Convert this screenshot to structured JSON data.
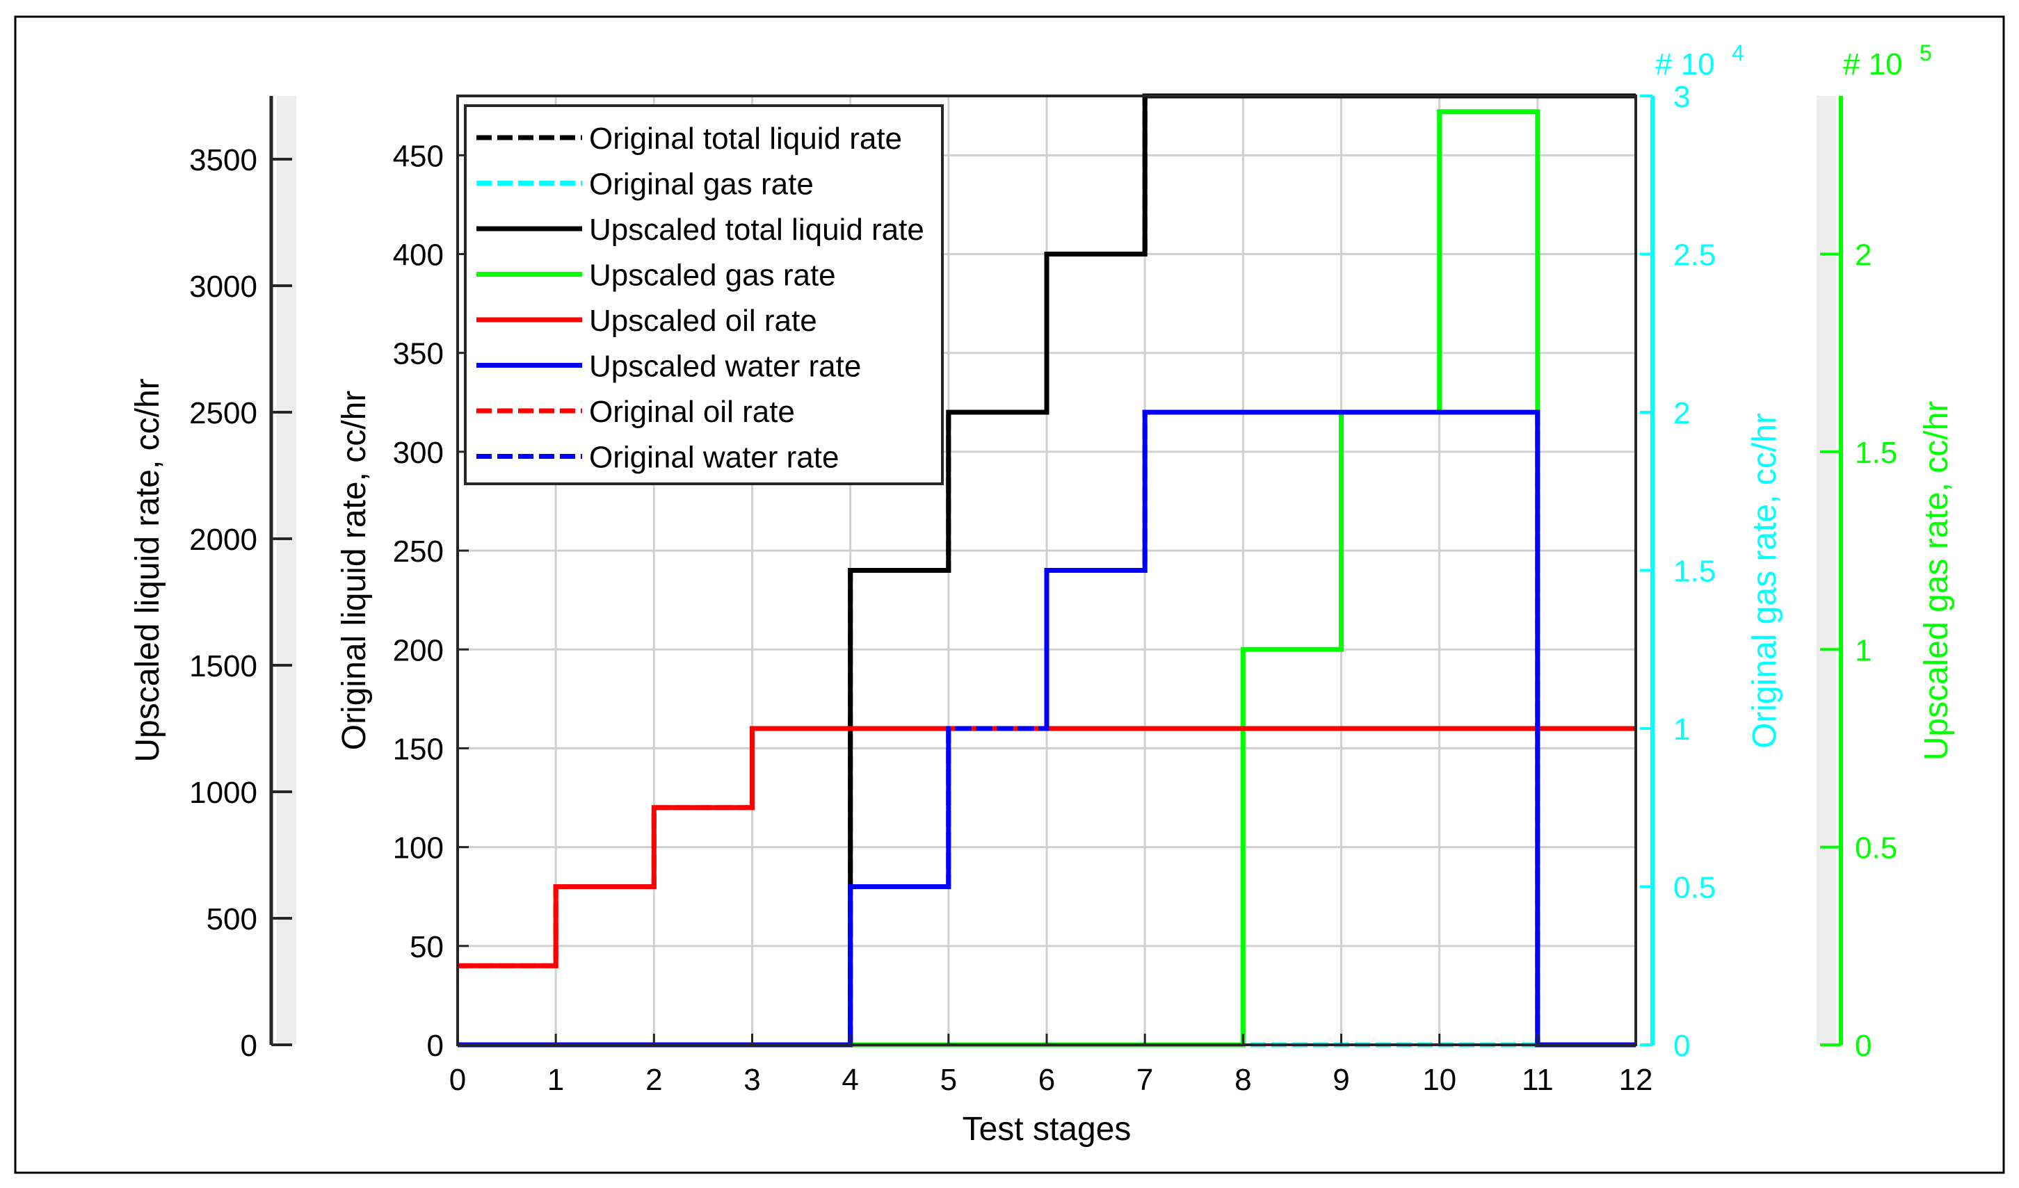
{
  "chart_data": {
    "type": "line",
    "step": true,
    "xlabel": "Test stages",
    "xlim": [
      0,
      12
    ],
    "x_ticks": [
      "0",
      "1",
      "2",
      "3",
      "4",
      "5",
      "6",
      "7",
      "8",
      "9",
      "10",
      "11",
      "12"
    ],
    "grid": true,
    "legend_position": "top-left",
    "axes": {
      "original_liquid": {
        "label": "Original liquid rate, cc/hr",
        "lim": [
          0,
          480
        ],
        "ticks": [
          "0",
          "50",
          "100",
          "150",
          "200",
          "250",
          "300",
          "350",
          "400",
          "450"
        ],
        "color": "#000000"
      },
      "upscaled_liquid": {
        "label": "Upscaled liquid rate, cc/hr",
        "lim": [
          0,
          3750
        ],
        "ticks": [
          "0",
          "500",
          "1000",
          "1500",
          "2000",
          "2500",
          "3000",
          "3500"
        ],
        "color": "#000000"
      },
      "original_gas": {
        "label": "Original gas rate, cc/hr",
        "lim": [
          0,
          3
        ],
        "ticks": [
          "0",
          "0.5",
          "1",
          "1.5",
          "2",
          "2.5",
          "3"
        ],
        "exponent_label": "# 10",
        "exponent": "4",
        "color": "#00ffff"
      },
      "upscaled_gas": {
        "label": "Upscaled gas rate, cc/hr",
        "lim": [
          0,
          2.4
        ],
        "ticks": [
          "0",
          "0.5",
          "1",
          "1.5",
          "2"
        ],
        "exponent_label": "# 10",
        "exponent": "5",
        "color": "#00ff00"
      }
    },
    "x_edges": [
      0,
      1,
      2,
      3,
      4,
      5,
      6,
      7,
      8,
      9,
      10,
      11,
      12
    ],
    "series": [
      {
        "name": "Original total liquid rate",
        "color": "#000000",
        "dash": true,
        "axis": "original_liquid",
        "values": [
          0,
          0,
          0,
          0,
          240,
          320,
          400,
          480,
          480,
          480,
          480,
          480
        ]
      },
      {
        "name": "Original gas rate",
        "color": "#00ffff",
        "dash": true,
        "axis": "original_gas",
        "values": [
          0,
          0,
          0,
          0,
          0,
          0,
          0,
          0,
          0,
          0,
          0,
          0
        ]
      },
      {
        "name": "Upscaled total liquid rate",
        "color": "#000000",
        "dash": false,
        "axis": "original_liquid",
        "values": [
          0,
          0,
          0,
          0,
          240,
          320,
          400,
          480,
          480,
          480,
          480,
          480
        ]
      },
      {
        "name": "Upscaled gas rate",
        "color": "#00ff00",
        "dash": false,
        "axis": "upscaled_gas",
        "values": [
          0,
          0,
          0,
          0,
          0,
          0,
          0,
          0,
          1,
          1.6,
          2.36,
          0
        ]
      },
      {
        "name": "Upscaled oil rate",
        "color": "#ff0000",
        "dash": false,
        "axis": "original_liquid",
        "values": [
          40,
          80,
          120,
          160,
          160,
          160,
          160,
          160,
          160,
          160,
          160,
          160
        ]
      },
      {
        "name": "Upscaled water rate",
        "color": "#0000ff",
        "dash": false,
        "axis": "original_liquid",
        "values": [
          0,
          0,
          0,
          0,
          80,
          160,
          240,
          320,
          320,
          320,
          320,
          0
        ]
      },
      {
        "name": "Original oil rate",
        "color": "#ff0000",
        "dash": true,
        "axis": "original_liquid",
        "values": [
          40,
          80,
          120,
          160,
          160,
          160,
          160,
          160,
          160,
          160,
          160,
          160
        ]
      },
      {
        "name": "Original water rate",
        "color": "#0000ff",
        "dash": true,
        "axis": "original_liquid",
        "values": [
          0,
          0,
          0,
          0,
          80,
          160,
          240,
          320,
          320,
          320,
          320,
          0
        ]
      }
    ]
  }
}
